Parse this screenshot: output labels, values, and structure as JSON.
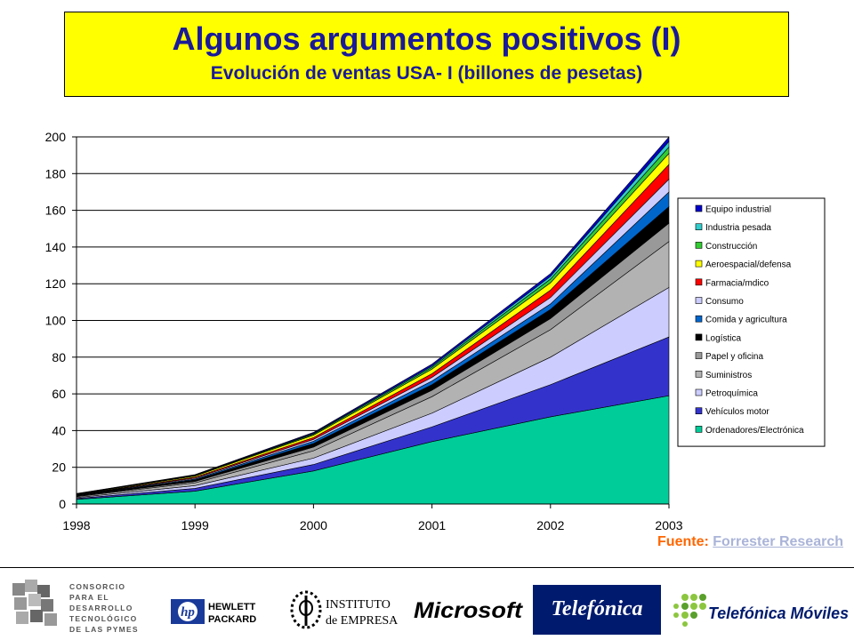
{
  "header": {
    "title": "Algunos argumentos positivos (I)",
    "subtitle": "Evolución de ventas USA- I (billones de pesetas)"
  },
  "chart_data": {
    "type": "area",
    "stacked": true,
    "title": "Evolución de ventas USA- I (billones de pesetas)",
    "xlabel": "",
    "ylabel": "",
    "x": [
      "1998",
      "1999",
      "2000",
      "2001",
      "2002",
      "2003"
    ],
    "ylim": [
      0,
      200
    ],
    "yticks": [
      0,
      20,
      40,
      60,
      80,
      100,
      120,
      140,
      160,
      180,
      200
    ],
    "grid": true,
    "legend_position": "right",
    "series": [
      {
        "name": "Ordenadores/Electrónica",
        "color": "#00cc99",
        "values": [
          2.5,
          7,
          18,
          34,
          47.5,
          59
        ]
      },
      {
        "name": "Vehículos motor",
        "color": "#3333cc",
        "values": [
          0.5,
          1.5,
          3.5,
          8,
          17.5,
          32
        ]
      },
      {
        "name": "Petroquímica",
        "color": "#ccccff",
        "values": [
          0.5,
          1.5,
          3.5,
          7.5,
          15,
          27
        ]
      },
      {
        "name": "Suministros",
        "color": "#b2b2b2",
        "values": [
          0.5,
          1.5,
          4,
          9,
          15,
          25
        ]
      },
      {
        "name": "Papel y oficina",
        "color": "#999999",
        "values": [
          0.3,
          0.8,
          2,
          3.5,
          6,
          10
        ]
      },
      {
        "name": "Logística",
        "color": "#000000",
        "values": [
          0.3,
          0.8,
          2,
          3,
          5,
          9
        ]
      },
      {
        "name": "Comida y agricultura",
        "color": "#0066cc",
        "values": [
          0.2,
          0.5,
          1.2,
          2,
          3,
          8
        ]
      },
      {
        "name": "Consumo",
        "color": "#ccccff",
        "values": [
          0.2,
          0.5,
          1,
          2,
          3.5,
          7
        ]
      },
      {
        "name": "Farmacia/mdico",
        "color": "#ff0000",
        "values": [
          0.2,
          0.5,
          1,
          2,
          4,
          8
        ]
      },
      {
        "name": "Aeroespacial/defensa",
        "color": "#ffff00",
        "values": [
          0.2,
          0.6,
          1.3,
          2.5,
          4,
          6
        ]
      },
      {
        "name": "Construcción",
        "color": "#33cc33",
        "values": [
          0.1,
          0.3,
          0.6,
          1,
          2,
          3.5
        ]
      },
      {
        "name": "Industria pesada",
        "color": "#33cccc",
        "values": [
          0.1,
          0.2,
          0.4,
          0.7,
          1.5,
          3
        ]
      },
      {
        "name": "Equipo industrial",
        "color": "#0000cc",
        "values": [
          0.1,
          0.3,
          0.5,
          1,
          1.5,
          2.5
        ]
      }
    ]
  },
  "source": {
    "label": "Fuente:",
    "link_text": "Forrester Research"
  },
  "footer": {
    "consorcio_lines": [
      "CONSORCIO",
      "PARA EL",
      "DESARROLLO",
      "TECNOLÓGICO",
      "DE LAS PYMES"
    ],
    "hp_mark": "hp",
    "hp_line1": "HEWLETT",
    "hp_line2": "PACKARD",
    "ie_line1": "INSTITUTO",
    "ie_line2": "de EMPRESA",
    "microsoft": "Microsoft",
    "telefonica": "Telefónica",
    "telefonica_moviles": "Telefónica Móviles"
  }
}
